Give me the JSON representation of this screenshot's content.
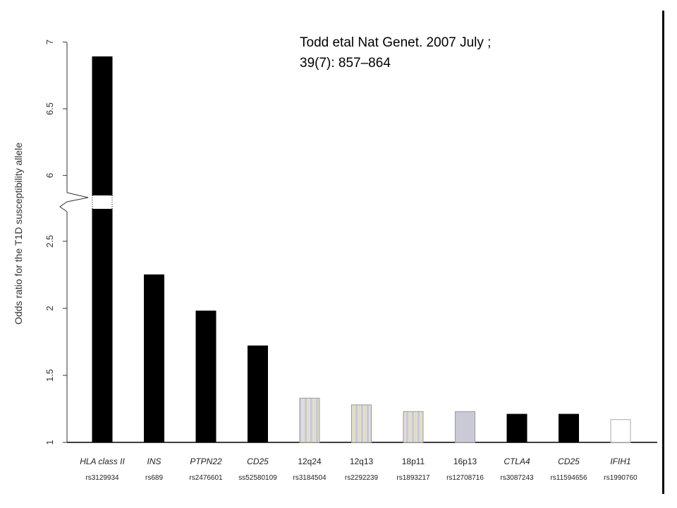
{
  "citation": {
    "line1": "Todd etal Nat Genet. 2007 July ;",
    "line2": "39(7): 857–864"
  },
  "chart_data": {
    "type": "bar",
    "ylabel": "Odds ratio for the T1D susceptibility allele",
    "xlabel": "",
    "axis_break": {
      "lower_top": 2.75,
      "upper_bottom": 5.85
    },
    "yticks_lower": [
      "1",
      "1.5",
      "2",
      "2.5"
    ],
    "yticks_upper": [
      "6",
      "6.5",
      "7"
    ],
    "ylim": [
      1,
      7
    ],
    "grid": false,
    "categories": [
      "HLA class II",
      "INS",
      "PTPN22",
      "CD25",
      "12q24",
      "12q13",
      "18p11",
      "16p13",
      "CTLA4",
      "CD25",
      "IFIH1"
    ],
    "italic": [
      true,
      true,
      true,
      true,
      false,
      false,
      false,
      false,
      true,
      true,
      true
    ],
    "snps": [
      "rs3129934",
      "rs689",
      "rs2476601",
      "ss52580109",
      "rs3184504",
      "rs2292239",
      "rs1893217",
      "rs12708716",
      "rs3087243",
      "rs11594656",
      "rs1990760"
    ],
    "values": [
      6.89,
      2.25,
      1.98,
      1.72,
      1.33,
      1.28,
      1.23,
      1.23,
      1.21,
      1.21,
      1.17
    ],
    "fills": [
      "black",
      "black",
      "black",
      "black",
      "striped",
      "striped",
      "striped",
      "gray",
      "black",
      "black",
      "white"
    ],
    "colors": {
      "black": "#000000",
      "stripe_a": "#c8c8d8",
      "stripe_b": "#e4e0c8",
      "gray": "#cacad6",
      "white": "#ffffff"
    }
  }
}
